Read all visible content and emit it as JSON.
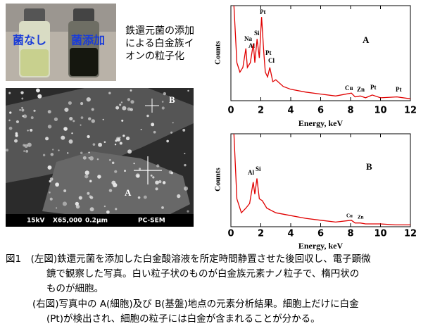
{
  "left": {
    "vial_labels": [
      "菌なし",
      "菌添加"
    ],
    "note_lines": [
      "鉄還元菌の添加",
      "による白金族イ",
      "オンの粒子化"
    ],
    "sem": {
      "points": [
        "B",
        "A"
      ],
      "footer": [
        "15kV",
        "X65,000",
        "0.2μm",
        "PC-SEM"
      ]
    }
  },
  "chart_data": [
    {
      "type": "line",
      "label": "A",
      "x_label": "Energy, keV",
      "y_label": "Counts",
      "color": "#e00000",
      "x": [
        0.2,
        0.4,
        0.6,
        0.8,
        1.0,
        1.1,
        1.3,
        1.5,
        1.6,
        1.75,
        1.9,
        2.05,
        2.2,
        2.3,
        2.45,
        2.6,
        2.8,
        3.0,
        3.5,
        4,
        5,
        6,
        7,
        8.05,
        8.3,
        8.65,
        9,
        9.45,
        10,
        11.1,
        12
      ],
      "values": [
        100,
        40,
        30,
        35,
        55,
        35,
        40,
        60,
        40,
        65,
        45,
        88,
        50,
        30,
        25,
        35,
        20,
        22,
        15,
        12,
        9,
        7,
        5,
        8,
        4,
        5,
        3,
        6,
        3,
        4,
        2
      ],
      "xlim": [
        0,
        12
      ],
      "ylim": [
        0,
        100
      ],
      "xticks": [
        0,
        2,
        4,
        6,
        8,
        10,
        12
      ],
      "annotations": [
        "Pt",
        "Na",
        "Al",
        "Si",
        "Pt",
        "Cl",
        "Cu",
        "Zn",
        "Pt",
        "Pt"
      ]
    },
    {
      "type": "line",
      "label": "B",
      "x_label": "Energy, keV",
      "y_label": "Counts",
      "color": "#e00000",
      "x": [
        0.2,
        0.4,
        0.7,
        1.0,
        1.25,
        1.49,
        1.6,
        1.74,
        1.9,
        2.1,
        2.4,
        3,
        4,
        5,
        6,
        7,
        8.05,
        8.3,
        8.65,
        9,
        10,
        11,
        12
      ],
      "values": [
        100,
        30,
        15,
        20,
        25,
        48,
        35,
        52,
        30,
        28,
        20,
        15,
        12,
        9,
        7,
        5,
        7,
        4,
        4,
        3,
        3,
        2,
        2
      ],
      "xlim": [
        0,
        12
      ],
      "ylim": [
        0,
        100
      ],
      "xticks": [
        0,
        2,
        4,
        6,
        8,
        10,
        12
      ],
      "annotations": [
        "Al",
        "Si",
        "Cu",
        "Zn"
      ]
    }
  ],
  "caption": {
    "lines": [
      "図1　(左図)鉄還元菌を添加した白金酸溶液を所定時間静置させた後回収し、電子顕微",
      "鏡で観察した写真。白い粒子状のものが白金族元素ナノ粒子で、楕円状の",
      "ものが細胞。",
      "(右図)写真中の A(細胞)及び B(基盤)地点の元素分析結果。細胞上だけに白金",
      "(Pt)が検出され、細胞の粒子には白金が含まれることが分かる。"
    ]
  }
}
